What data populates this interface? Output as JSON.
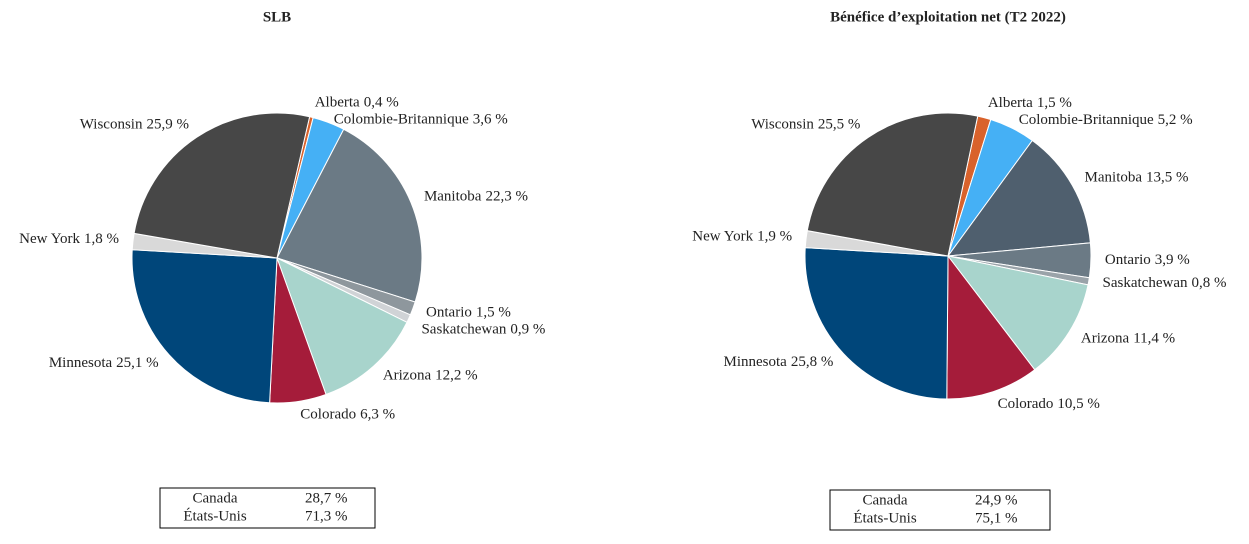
{
  "chart_data": [
    {
      "type": "pie",
      "title": "SLB",
      "start_angle": 13,
      "categories": [
        "Alberta",
        "Colombie-Britannique",
        "Manitoba",
        "Ontario",
        "Saskatchewan",
        "Arizona",
        "Colorado",
        "Minnesota",
        "New York",
        "Wisconsin"
      ],
      "values": [
        0.4,
        3.6,
        22.3,
        1.5,
        0.9,
        12.2,
        6.3,
        25.1,
        1.8,
        25.9
      ],
      "value_labels": [
        "0,4 %",
        "3,6 %",
        "22,3 %",
        "1,5 %",
        "0,9 %",
        "12,2 %",
        "6,3 %",
        "25,1 %",
        "1,8 %",
        "25,9 %"
      ],
      "colors": [
        "#d9622b",
        "#45b0f5",
        "#6b7a85",
        "#8e979d",
        "#d0d3d6",
        "#a8d4cc",
        "#a51c3a",
        "#00467a",
        "#d9d9d9",
        "#474747"
      ],
      "table": {
        "rows": [
          [
            "Canada",
            "28,7 %"
          ],
          [
            "États-Unis",
            "71,3 %"
          ]
        ]
      }
    },
    {
      "type": "pie",
      "title": "Bénéfice d’exploitation net (T2 2022)",
      "start_angle": 12,
      "categories": [
        "Alberta",
        "Colombie-Britannique",
        "Manitoba",
        "Ontario",
        "Saskatchewan",
        "Arizona",
        "Colorado",
        "Minnesota",
        "New York",
        "Wisconsin"
      ],
      "values": [
        1.5,
        5.2,
        13.5,
        3.9,
        0.8,
        11.4,
        10.5,
        25.8,
        1.9,
        25.5
      ],
      "value_labels": [
        "1,5 %",
        "5,2 %",
        "13,5 %",
        "3,9 %",
        "0,8 %",
        "11,4 %",
        "10,5 %",
        "25,8 %",
        "1,9 %",
        "25,5 %"
      ],
      "colors": [
        "#d9622b",
        "#45b0f5",
        "#4f5f6e",
        "#6b7a85",
        "#9aa3a9",
        "#a8d4cc",
        "#a51c3a",
        "#00467a",
        "#d9d9d9",
        "#474747"
      ],
      "table": {
        "rows": [
          [
            "Canada",
            "24,9 %"
          ],
          [
            "États-Unis",
            "75,1 %"
          ]
        ]
      }
    }
  ]
}
